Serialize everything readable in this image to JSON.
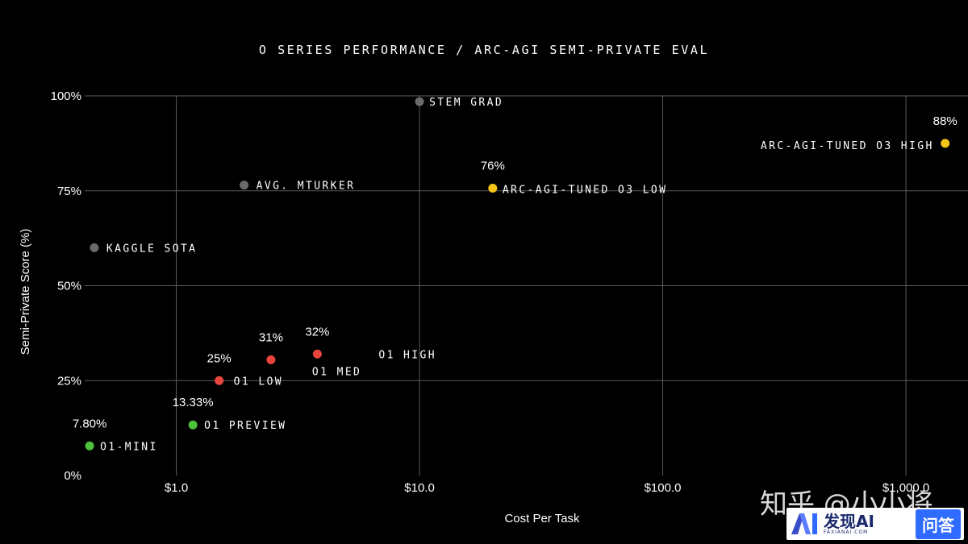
{
  "chart_data": {
    "type": "scatter",
    "title": "O SERIES PERFORMANCE / ARC-AGI SEMI-PRIVATE EVAL",
    "xlabel": "Cost Per Task",
    "ylabel": "Semi-Private Score (%)",
    "x_scale": "log",
    "xlim": [
      0.42,
      1800
    ],
    "ylim": [
      0,
      100
    ],
    "x_ticks": [
      1,
      10,
      100,
      1000
    ],
    "x_tick_labels": [
      "$1.0",
      "$10.0",
      "$100.0",
      "$1,000.0"
    ],
    "y_ticks": [
      0,
      25,
      50,
      75,
      100
    ],
    "y_tick_labels": [
      "0%",
      "25%",
      "50%",
      "75%",
      "100%"
    ],
    "grid": true,
    "colors": {
      "human": "#6a6a6a",
      "o1": "#e8453c",
      "o1mini": "#4cc23a",
      "o3": "#f5c518"
    },
    "points": [
      {
        "label": "STEM GRAD",
        "x": 10,
        "y": 98.5,
        "color": "#6a6a6a",
        "value_label": ""
      },
      {
        "label": "AVG. MTURKER",
        "x": 1.9,
        "y": 76.5,
        "color": "#6a6a6a",
        "value_label": ""
      },
      {
        "label": "KAGGLE SOTA",
        "x": 0.46,
        "y": 60,
        "color": "#6a6a6a",
        "value_label": ""
      },
      {
        "label": "ARC-AGI-TUNED O3 HIGH",
        "x": 1450,
        "y": 87.5,
        "color": "#f5c518",
        "value_label": "88%"
      },
      {
        "label": "ARC-AGI-TUNED O3 LOW",
        "x": 20,
        "y": 75.7,
        "color": "#f5c518",
        "value_label": "76%"
      },
      {
        "label": "O1 HIGH",
        "x": 3.8,
        "y": 32,
        "color": "#e8453c",
        "value_label": "32%"
      },
      {
        "label": "O1 MED",
        "x": 2.45,
        "y": 30.5,
        "color": "#e8453c",
        "value_label": "31%"
      },
      {
        "label": "O1 LOW",
        "x": 1.5,
        "y": 25,
        "color": "#e8453c",
        "value_label": "25%"
      },
      {
        "label": "O1 PREVIEW",
        "x": 1.17,
        "y": 13.33,
        "color": "#4cc23a",
        "value_label": "13.33%"
      },
      {
        "label": "O1-MINI",
        "x": 0.44,
        "y": 7.8,
        "color": "#4cc23a",
        "value_label": "7.80%"
      }
    ]
  },
  "watermark": {
    "text": "知乎 @小小将"
  },
  "badge": {
    "brand": "发现AI",
    "url": "FAXIANAI.COM",
    "button": "问答",
    "logo_icon": "ai-logo-icon"
  }
}
